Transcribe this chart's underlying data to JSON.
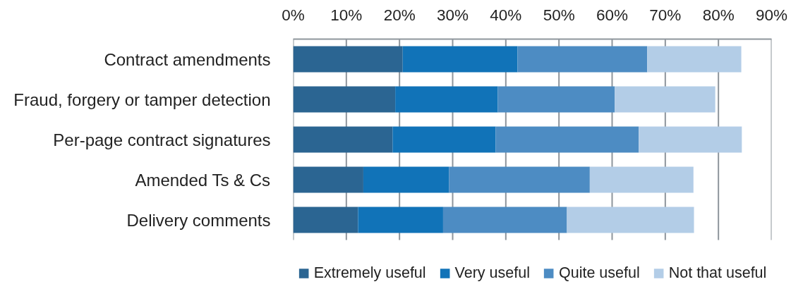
{
  "chart_data": {
    "type": "bar",
    "orientation": "horizontal",
    "stacked": true,
    "categories": [
      "Contract amendments",
      "Fraud, forgery or tamper detection",
      "Per-page contract signatures",
      "Amended Ts & Cs",
      "Delivery comments"
    ],
    "series": [
      {
        "name": "Extremely useful",
        "color": "#2b6592",
        "values": [
          20.6,
          19.2,
          18.7,
          13.2,
          12.2
        ]
      },
      {
        "name": "Very useful",
        "color": "#1173b8",
        "values": [
          21.6,
          19.3,
          19.4,
          16.1,
          16.0
        ]
      },
      {
        "name": "Quite useful",
        "color": "#4d8cc3",
        "values": [
          24.4,
          22.0,
          26.9,
          26.5,
          23.3
        ]
      },
      {
        "name": "Not that useful",
        "color": "#b3cde7",
        "values": [
          17.7,
          18.9,
          19.4,
          19.5,
          23.9
        ]
      }
    ],
    "xlim": [
      0,
      90
    ],
    "xticks": [
      {
        "value": 0,
        "label": "0%"
      },
      {
        "value": 10,
        "label": "10%"
      },
      {
        "value": 20,
        "label": "20%"
      },
      {
        "value": 30,
        "label": "30%"
      },
      {
        "value": 40,
        "label": "40%"
      },
      {
        "value": 50,
        "label": "50%"
      },
      {
        "value": 60,
        "label": "60%"
      },
      {
        "value": 70,
        "label": "70%"
      },
      {
        "value": 80,
        "label": "80%"
      },
      {
        "value": 90,
        "label": "90%"
      }
    ],
    "grid": "x",
    "legend": "bottom"
  }
}
